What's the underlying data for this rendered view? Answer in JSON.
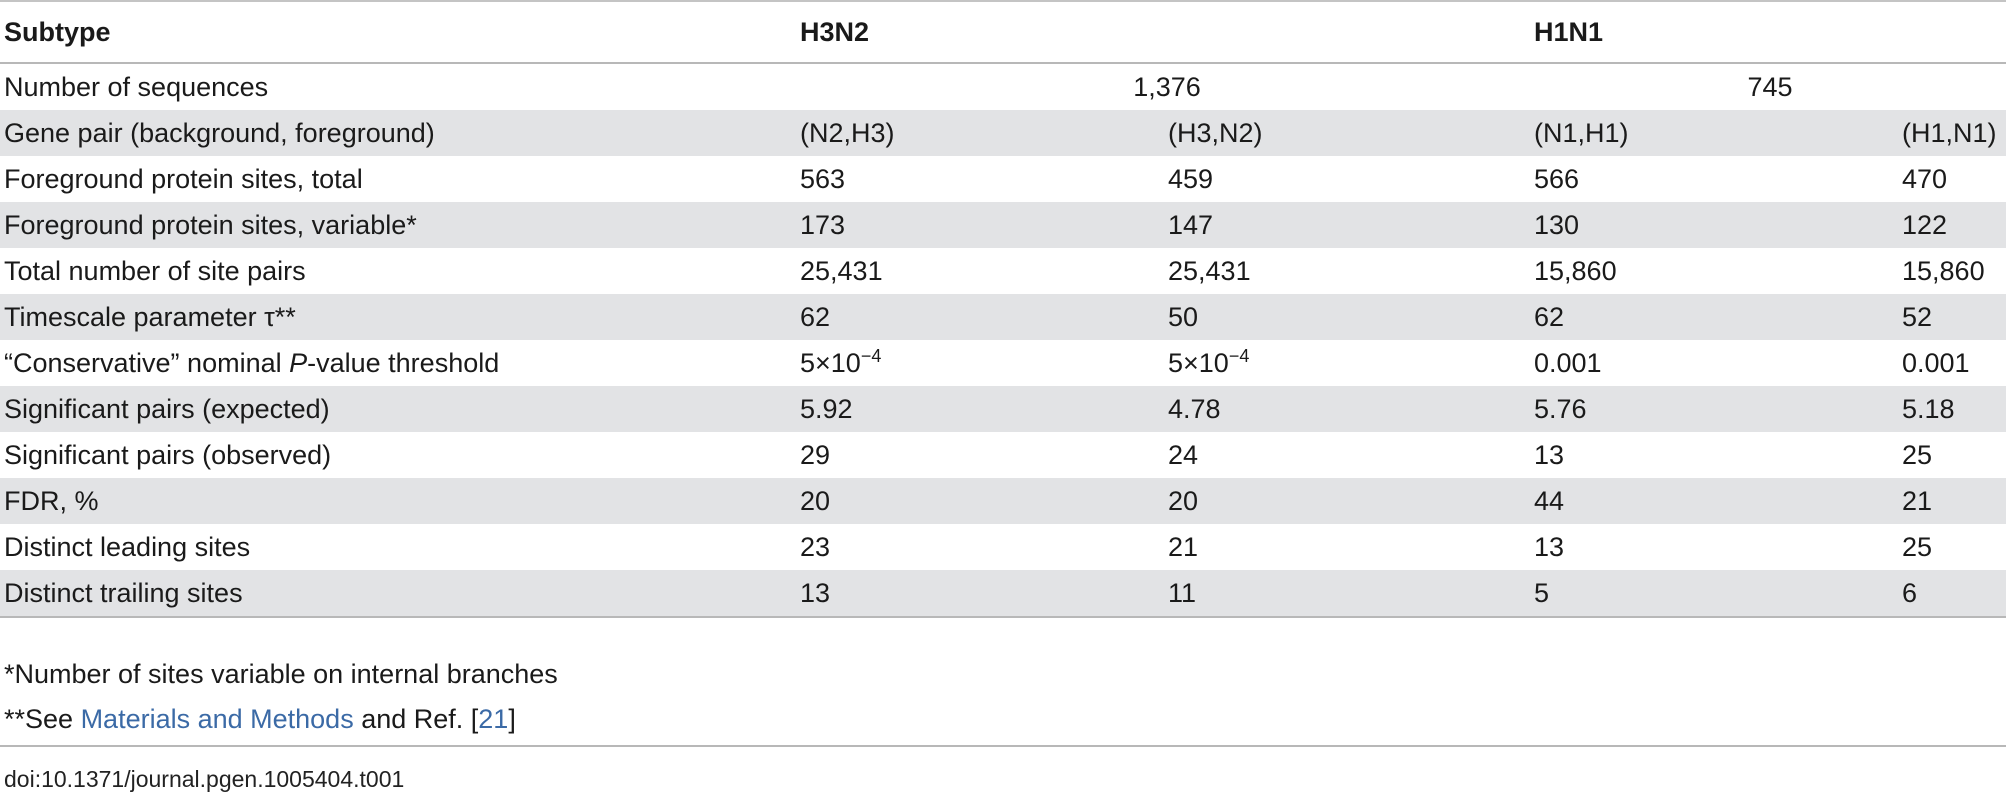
{
  "header": {
    "subtype_label": "Subtype",
    "group1": "H3N2",
    "group2": "H1N1"
  },
  "num_sequences": {
    "label": "Number of sequences",
    "group1": "1,376",
    "group2": "745"
  },
  "rows": [
    {
      "label": "Gene pair (background, foreground)",
      "values": [
        "(N2,H3)",
        "(H3,N2)",
        "(N1,H1)",
        "(H1,N1)"
      ]
    },
    {
      "label": "Foreground protein sites, total",
      "values": [
        "563",
        "459",
        "566",
        "470"
      ]
    },
    {
      "label": "Foreground protein sites, variable*",
      "values": [
        "173",
        "147",
        "130",
        "122"
      ]
    },
    {
      "label": "Total number of site pairs",
      "values": [
        "25,431",
        "25,431",
        "15,860",
        "15,860"
      ]
    },
    {
      "label": "Timescale parameter τ**",
      "values": [
        "62",
        "50",
        "62",
        "52"
      ]
    },
    {
      "label_pre": "“Conservative” nominal ",
      "label_italic": "P",
      "label_post": "-value threshold",
      "values": [
        {
          "base": "5×10",
          "exp": "−4"
        },
        {
          "base": "5×10",
          "exp": "−4"
        },
        "0.001",
        "0.001"
      ]
    },
    {
      "label": "Significant pairs (expected)",
      "values": [
        "5.92",
        "4.78",
        "5.76",
        "5.18"
      ]
    },
    {
      "label": "Significant pairs (observed)",
      "values": [
        "29",
        "24",
        "13",
        "25"
      ]
    },
    {
      "label": "FDR, %",
      "values": [
        "20",
        "20",
        "44",
        "21"
      ]
    },
    {
      "label": "Distinct leading sites",
      "values": [
        "23",
        "21",
        "13",
        "25"
      ]
    },
    {
      "label": "Distinct trailing sites",
      "values": [
        "13",
        "11",
        "5",
        "6"
      ]
    }
  ],
  "footnotes": {
    "note1": "*Number of sites variable on internal branches",
    "note2_prefix": "**See ",
    "note2_link": "Materials and Methods",
    "note2_mid": " and Ref. [",
    "note2_ref": "21",
    "note2_suffix": "]"
  },
  "doi": "doi:10.1371/journal.pgen.1005404.t001",
  "colors": {
    "shade": "#e2e3e5",
    "link": "#3b6aa6",
    "rule": "#b8b8b8"
  }
}
